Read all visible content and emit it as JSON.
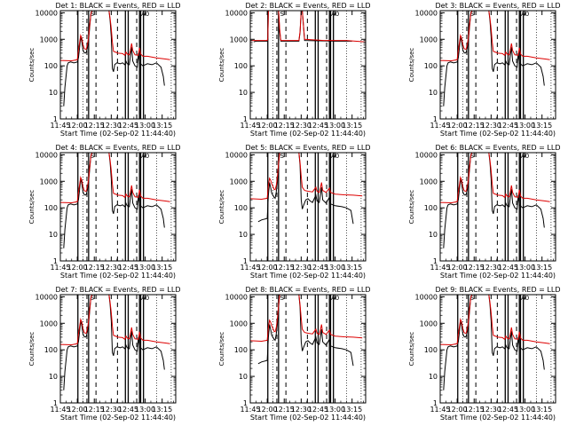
{
  "chart_data": {
    "type": "line",
    "layout": "3x3 grid of panels",
    "x_tick_labels": [
      "11:45",
      "12:00",
      "12:15",
      "12:30",
      "12:45",
      "13:00",
      "13:15"
    ],
    "x_ticks_min": [
      -15,
      0,
      15,
      30,
      45,
      60,
      75
    ],
    "xlim_min": [
      -15,
      87
    ],
    "y_tick_labels": [
      "1",
      "10",
      "100",
      "1000",
      "10000"
    ],
    "y_ticks": [
      1,
      10,
      100,
      1000,
      10000
    ],
    "ylim": [
      1,
      12000
    ],
    "y_scale": "log",
    "ylabel": "Counts/sec",
    "xlabel": "Start Time (02-Sep-02 11:44:40)",
    "series_colors": {
      "Events": "#000000",
      "LLD": "#dd0000"
    },
    "attenuator_markers": [
      "S",
      "A0"
    ],
    "panels": [
      {
        "title": "Det 1: BLACK = Events, RED = LLD",
        "template": "A"
      },
      {
        "title": "Det 2: BLACK = Events, RED = LLD",
        "template": "flat"
      },
      {
        "title": "Det 3: BLACK = Events, RED = LLD",
        "template": "A"
      },
      {
        "title": "Det 4: BLACK = Events, RED = LLD",
        "template": "A"
      },
      {
        "title": "Det 5: BLACK = Events, RED = LLD",
        "template": "B"
      },
      {
        "title": "Det 6: BLACK = Events, RED = LLD",
        "template": "A"
      },
      {
        "title": "Det 7: BLACK = Events, RED = LLD",
        "template": "A"
      },
      {
        "title": "Det 8: BLACK = Events, RED = LLD",
        "template": "B"
      },
      {
        "title": "Det 9: BLACK = Events, RED = LLD",
        "template": "A"
      }
    ],
    "series_templates": {
      "A": {
        "red": [
          [
            -15,
            160
          ],
          [
            -5,
            155
          ],
          [
            0,
            170
          ],
          [
            1,
            400
          ],
          [
            2,
            750
          ],
          [
            3,
            1400
          ],
          [
            4,
            1100
          ],
          [
            5,
            650
          ],
          [
            6,
            460
          ],
          [
            7,
            420
          ],
          [
            8,
            430
          ],
          [
            9,
            650
          ],
          [
            10,
            1300
          ],
          [
            11,
            3500
          ],
          [
            12,
            9000
          ],
          [
            13,
            12000
          ],
          [
            28,
            12000
          ],
          [
            29,
            6000
          ],
          [
            30,
            2500
          ],
          [
            31,
            800
          ],
          [
            32,
            350
          ],
          [
            36,
            300
          ],
          [
            40,
            290
          ],
          [
            42,
            250
          ],
          [
            43,
            330
          ],
          [
            44,
            280
          ],
          [
            46,
            260
          ],
          [
            47,
            400
          ],
          [
            48,
            700
          ],
          [
            49,
            380
          ],
          [
            51,
            260
          ],
          [
            54,
            250
          ],
          [
            55,
            480
          ],
          [
            56,
            280
          ],
          [
            58,
            230
          ],
          [
            62,
            230
          ],
          [
            70,
            200
          ],
          [
            78,
            180
          ],
          [
            82,
            170
          ]
        ],
        "black": [
          [
            -12,
            3
          ],
          [
            -11,
            15
          ],
          [
            -10,
            40
          ],
          [
            -9,
            100
          ],
          [
            -8,
            130
          ],
          [
            -6,
            140
          ],
          [
            -3,
            130
          ],
          [
            0,
            140
          ],
          [
            1,
            200
          ],
          [
            2,
            500
          ],
          [
            3,
            1300
          ],
          [
            4,
            800
          ],
          [
            5,
            400
          ],
          [
            6,
            320
          ],
          [
            7,
            300
          ],
          [
            8,
            330
          ],
          [
            9,
            500
          ],
          [
            10,
            1000
          ],
          [
            11,
            3000
          ],
          [
            12,
            9000
          ],
          [
            13,
            12000
          ],
          [
            28,
            12000
          ],
          [
            29,
            5000
          ],
          [
            30,
            1200
          ],
          [
            31,
            80
          ],
          [
            32,
            60
          ],
          [
            33,
            110
          ],
          [
            35,
            130
          ],
          [
            38,
            120
          ],
          [
            40,
            130
          ],
          [
            42,
            110
          ],
          [
            43,
            150
          ],
          [
            44,
            120
          ],
          [
            46,
            110
          ],
          [
            47,
            250
          ],
          [
            48,
            500
          ],
          [
            49,
            150
          ],
          [
            51,
            100
          ],
          [
            53,
            90
          ],
          [
            54,
            300
          ],
          [
            55,
            130
          ],
          [
            58,
            100
          ],
          [
            62,
            120
          ],
          [
            66,
            110
          ],
          [
            70,
            130
          ],
          [
            74,
            90
          ],
          [
            76,
            40
          ],
          [
            77,
            18
          ]
        ]
      },
      "B": {
        "red": [
          [
            -15,
            220
          ],
          [
            -5,
            210
          ],
          [
            0,
            230
          ],
          [
            1,
            700
          ],
          [
            2,
            1300
          ],
          [
            3,
            1100
          ],
          [
            4,
            800
          ],
          [
            5,
            650
          ],
          [
            6,
            500
          ],
          [
            7,
            480
          ],
          [
            8,
            700
          ],
          [
            9,
            1500
          ],
          [
            10,
            5000
          ],
          [
            11,
            12000
          ],
          [
            28,
            12000
          ],
          [
            29,
            5000
          ],
          [
            30,
            1500
          ],
          [
            31,
            600
          ],
          [
            33,
            450
          ],
          [
            36,
            420
          ],
          [
            40,
            400
          ],
          [
            43,
            600
          ],
          [
            44,
            420
          ],
          [
            46,
            380
          ],
          [
            47,
            550
          ],
          [
            48,
            900
          ],
          [
            49,
            450
          ],
          [
            52,
            380
          ],
          [
            55,
            550
          ],
          [
            56,
            380
          ],
          [
            60,
            330
          ],
          [
            68,
            310
          ],
          [
            76,
            300
          ],
          [
            84,
            280
          ]
        ],
        "black": [
          [
            -8,
            30
          ],
          [
            -5,
            35
          ],
          [
            0,
            40
          ],
          [
            1,
            300
          ],
          [
            2,
            900
          ],
          [
            3,
            600
          ],
          [
            4,
            350
          ],
          [
            5,
            300
          ],
          [
            6,
            250
          ],
          [
            7,
            230
          ],
          [
            8,
            400
          ],
          [
            9,
            1000
          ],
          [
            10,
            4000
          ],
          [
            11,
            12000
          ],
          [
            28,
            12000
          ],
          [
            29,
            4000
          ],
          [
            30,
            200
          ],
          [
            31,
            90
          ],
          [
            32,
            120
          ],
          [
            34,
            200
          ],
          [
            36,
            220
          ],
          [
            38,
            180
          ],
          [
            40,
            160
          ],
          [
            43,
            300
          ],
          [
            44,
            180
          ],
          [
            46,
            160
          ],
          [
            47,
            300
          ],
          [
            48,
            600
          ],
          [
            49,
            200
          ],
          [
            52,
            150
          ],
          [
            55,
            250
          ],
          [
            56,
            140
          ],
          [
            60,
            120
          ],
          [
            66,
            110
          ],
          [
            70,
            100
          ],
          [
            74,
            80
          ],
          [
            76,
            25
          ]
        ]
      },
      "flat": {
        "red": [
          [
            -15,
            900
          ],
          [
            0,
            900
          ],
          [
            0.5,
            1100
          ],
          [
            1,
            12000
          ],
          [
            10,
            12000
          ],
          [
            11,
            2500
          ],
          [
            12,
            900
          ],
          [
            28,
            900
          ],
          [
            29,
            2000
          ],
          [
            30,
            12000
          ],
          [
            31,
            12000
          ],
          [
            33,
            1000
          ],
          [
            50,
            900
          ],
          [
            70,
            900
          ],
          [
            87,
            800
          ]
        ],
        "black": [
          [
            -12,
            800
          ],
          [
            -10,
            850
          ],
          [
            0,
            850
          ],
          [
            0.5,
            1000
          ],
          [
            1,
            12000
          ],
          [
            10,
            12000
          ],
          [
            11,
            2000
          ],
          [
            12,
            850
          ],
          [
            28,
            850
          ],
          [
            29,
            1800
          ],
          [
            30,
            12000
          ],
          [
            31,
            12000
          ],
          [
            33,
            900
          ],
          [
            60,
            850
          ],
          [
            75,
            850
          ]
        ]
      }
    },
    "solid_vlines_min": [
      0.5,
      10,
      42.5,
      45,
      55,
      56,
      58.5
    ],
    "dashed_vlines_min": [
      8.5,
      16.5,
      35.5,
      52.5
    ],
    "dotted_vlines_min": [
      5,
      70,
      83
    ]
  }
}
